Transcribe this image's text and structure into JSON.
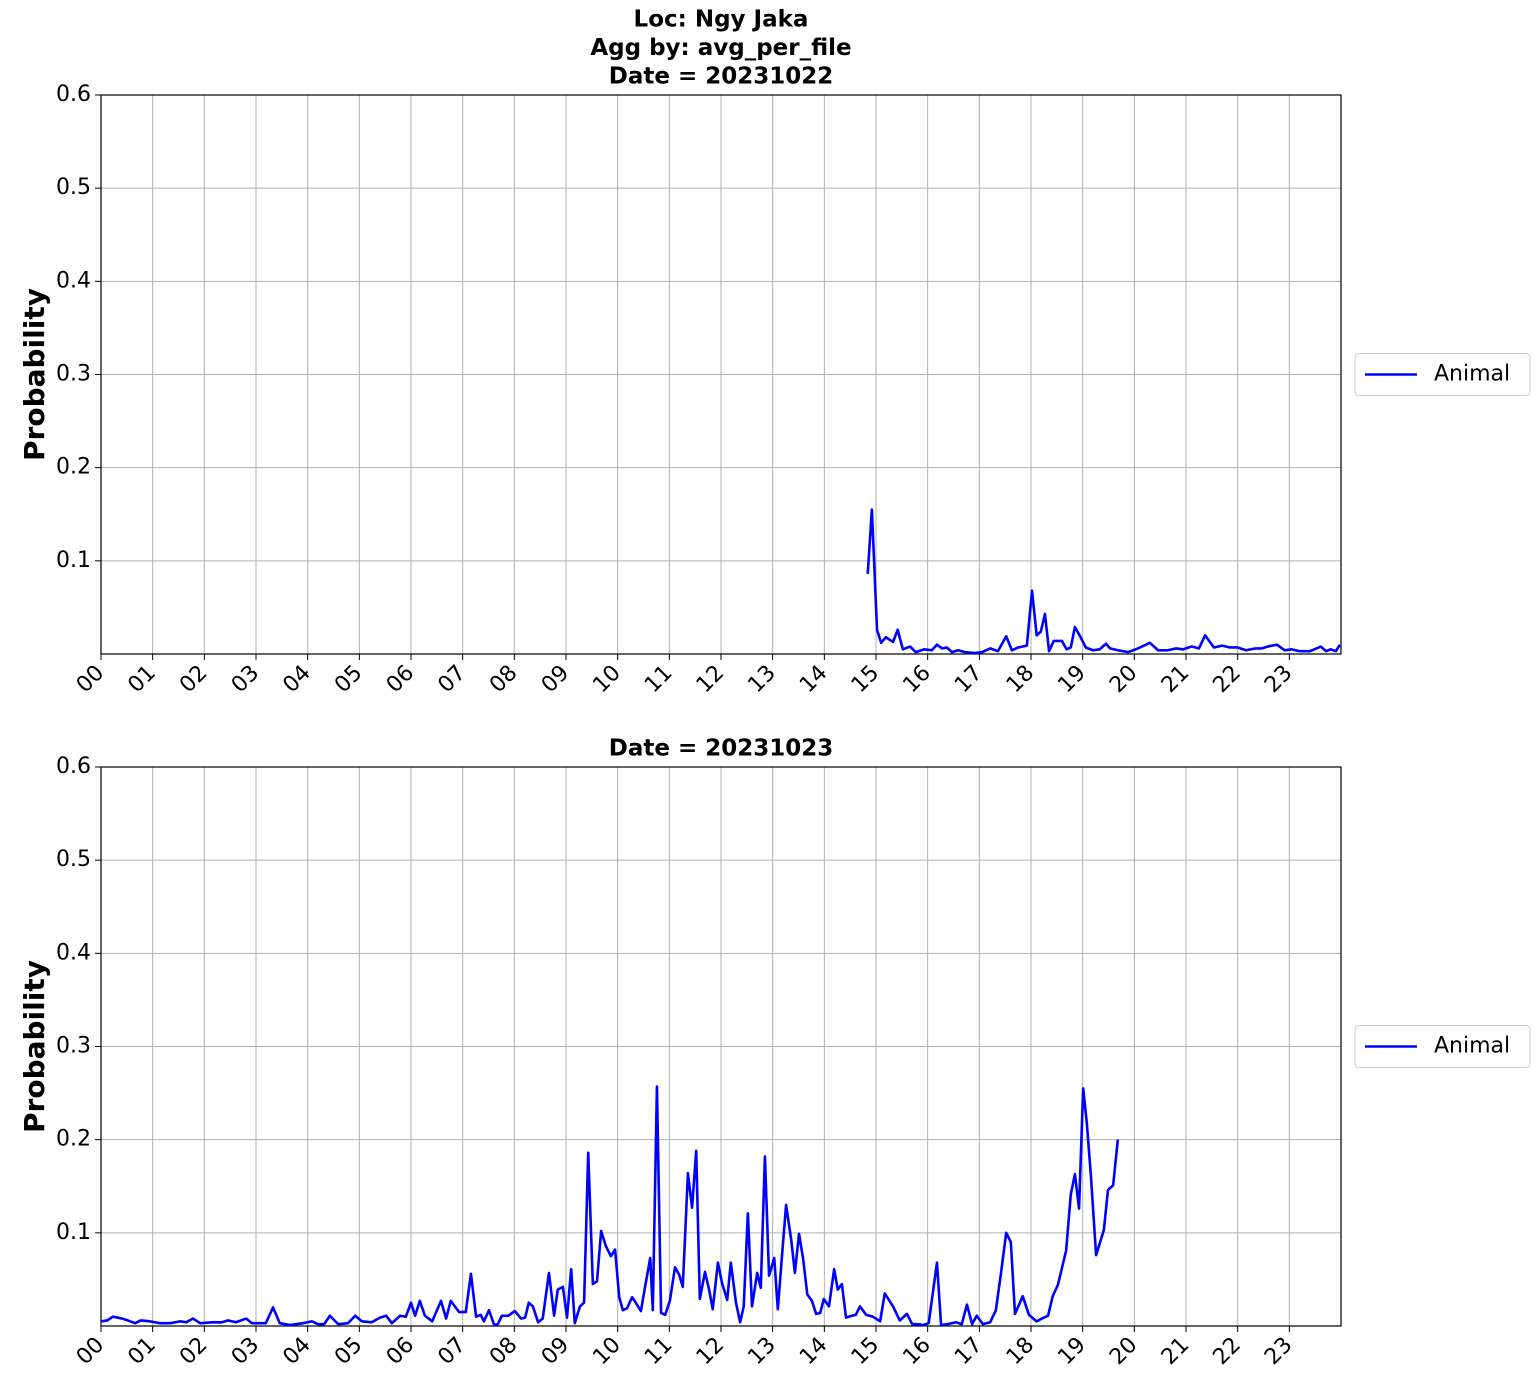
{
  "chart_data": [
    {
      "type": "line",
      "title": [
        "Loc: Ngy Jaka",
        "Agg by: avg_per_file",
        "Date = 20231022"
      ],
      "ylabel": "Probability",
      "xlim": [
        0,
        24
      ],
      "ylim": [
        0,
        0.6
      ],
      "yticks": [
        0.1,
        0.2,
        0.3,
        0.4,
        0.5,
        0.6
      ],
      "xticks": [
        {
          "value": 0,
          "label": "00"
        },
        {
          "value": 1,
          "label": "01"
        },
        {
          "value": 2,
          "label": "02"
        },
        {
          "value": 3,
          "label": "03"
        },
        {
          "value": 4,
          "label": "04"
        },
        {
          "value": 5,
          "label": "05"
        },
        {
          "value": 6,
          "label": "06"
        },
        {
          "value": 7,
          "label": "07"
        },
        {
          "value": 8,
          "label": "08"
        },
        {
          "value": 9,
          "label": "09"
        },
        {
          "value": 10,
          "label": "10"
        },
        {
          "value": 11,
          "label": "11"
        },
        {
          "value": 12,
          "label": "12"
        },
        {
          "value": 13,
          "label": "13"
        },
        {
          "value": 14,
          "label": "14"
        },
        {
          "value": 15,
          "label": "15"
        },
        {
          "value": 16,
          "label": "16"
        },
        {
          "value": 17,
          "label": "17"
        },
        {
          "value": 18,
          "label": "18"
        },
        {
          "value": 19,
          "label": "19"
        },
        {
          "value": 20,
          "label": "20"
        },
        {
          "value": 21,
          "label": "21"
        },
        {
          "value": 22,
          "label": "22"
        },
        {
          "value": 23,
          "label": "23"
        }
      ],
      "grid": true,
      "legend": "right",
      "x": [
        14.84,
        14.92,
        15.02,
        15.1,
        15.19,
        15.33,
        15.42,
        15.52,
        15.66,
        15.77,
        15.93,
        16.08,
        16.18,
        16.28,
        16.37,
        16.47,
        16.59,
        16.72,
        16.92,
        17.05,
        17.21,
        17.36,
        17.52,
        17.63,
        17.75,
        17.92,
        18.02,
        18.11,
        18.19,
        18.27,
        18.35,
        18.44,
        18.6,
        18.69,
        18.77,
        18.85,
        18.97,
        19.06,
        19.2,
        19.33,
        19.45,
        19.53,
        19.68,
        19.88,
        20.07,
        20.3,
        20.46,
        20.65,
        20.81,
        20.94,
        21.11,
        21.25,
        21.37,
        21.54,
        21.7,
        21.85,
        22.0,
        22.16,
        22.35,
        22.47,
        22.58,
        22.76,
        22.91,
        23.05,
        23.2,
        23.4,
        23.61,
        23.71,
        23.8,
        23.9,
        23.98
      ],
      "series": [
        {
          "name": "Animal",
          "color": "#0000ff",
          "values": [
            0.086,
            0.155,
            0.026,
            0.012,
            0.018,
            0.013,
            0.026,
            0.005,
            0.008,
            0.002,
            0.005,
            0.004,
            0.01,
            0.006,
            0.007,
            0.002,
            0.004,
            0.002,
            0.001,
            0.002,
            0.006,
            0.003,
            0.019,
            0.004,
            0.007,
            0.009,
            0.068,
            0.02,
            0.024,
            0.043,
            0.003,
            0.014,
            0.014,
            0.005,
            0.007,
            0.029,
            0.017,
            0.007,
            0.004,
            0.005,
            0.011,
            0.006,
            0.004,
            0.002,
            0.006,
            0.012,
            0.004,
            0.004,
            0.006,
            0.005,
            0.008,
            0.006,
            0.02,
            0.007,
            0.009,
            0.007,
            0.007,
            0.004,
            0.006,
            0.006,
            0.008,
            0.01,
            0.004,
            0.005,
            0.003,
            0.003,
            0.008,
            0.003,
            0.005,
            0.003,
            0.01
          ]
        }
      ]
    },
    {
      "type": "line",
      "title": [
        "Date = 20231023"
      ],
      "ylabel": "Probability",
      "xlim": [
        0,
        24
      ],
      "ylim": [
        0,
        0.6
      ],
      "yticks": [
        0.1,
        0.2,
        0.3,
        0.4,
        0.5,
        0.6
      ],
      "xticks": [
        {
          "value": 0,
          "label": "00"
        },
        {
          "value": 1,
          "label": "01"
        },
        {
          "value": 2,
          "label": "02"
        },
        {
          "value": 3,
          "label": "03"
        },
        {
          "value": 4,
          "label": "04"
        },
        {
          "value": 5,
          "label": "05"
        },
        {
          "value": 6,
          "label": "06"
        },
        {
          "value": 7,
          "label": "07"
        },
        {
          "value": 8,
          "label": "08"
        },
        {
          "value": 9,
          "label": "09"
        },
        {
          "value": 10,
          "label": "10"
        },
        {
          "value": 11,
          "label": "11"
        },
        {
          "value": 12,
          "label": "12"
        },
        {
          "value": 13,
          "label": "13"
        },
        {
          "value": 14,
          "label": "14"
        },
        {
          "value": 15,
          "label": "15"
        },
        {
          "value": 16,
          "label": "16"
        },
        {
          "value": 17,
          "label": "17"
        },
        {
          "value": 18,
          "label": "18"
        },
        {
          "value": 19,
          "label": "19"
        },
        {
          "value": 20,
          "label": "20"
        },
        {
          "value": 21,
          "label": "21"
        },
        {
          "value": 22,
          "label": "22"
        },
        {
          "value": 23,
          "label": "23"
        }
      ],
      "grid": true,
      "legend": "right",
      "x": [
        0.0,
        0.12,
        0.23,
        0.41,
        0.52,
        0.66,
        0.77,
        0.95,
        1.14,
        1.34,
        1.53,
        1.65,
        1.78,
        1.92,
        2.15,
        2.34,
        2.46,
        2.61,
        2.81,
        2.92,
        3.19,
        3.33,
        3.46,
        3.66,
        3.91,
        4.08,
        4.2,
        4.32,
        4.43,
        4.59,
        4.78,
        4.92,
        5.05,
        5.24,
        5.4,
        5.52,
        5.63,
        5.79,
        5.9,
        6.0,
        6.08,
        6.17,
        6.27,
        6.41,
        6.58,
        6.68,
        6.77,
        6.93,
        7.06,
        7.16,
        7.26,
        7.35,
        7.41,
        7.51,
        7.61,
        7.68,
        7.76,
        7.88,
        8.01,
        8.13,
        8.21,
        8.28,
        8.36,
        8.46,
        8.55,
        8.67,
        8.77,
        8.84,
        8.94,
        9.02,
        9.1,
        9.17,
        9.27,
        9.35,
        9.43,
        9.52,
        9.6,
        9.68,
        9.77,
        9.87,
        9.95,
        10.03,
        10.1,
        10.18,
        10.28,
        10.35,
        10.45,
        10.53,
        10.63,
        10.68,
        10.76,
        10.84,
        10.92,
        11.01,
        11.11,
        11.19,
        11.26,
        11.36,
        11.44,
        11.52,
        11.59,
        11.69,
        11.77,
        11.84,
        11.94,
        12.02,
        12.12,
        12.19,
        12.29,
        12.37,
        12.44,
        12.52,
        12.6,
        12.7,
        12.77,
        12.85,
        12.93,
        13.03,
        13.1,
        13.18,
        13.26,
        13.36,
        13.43,
        13.51,
        13.59,
        13.67,
        13.76,
        13.84,
        13.92,
        13.99,
        14.09,
        14.19,
        14.26,
        14.34,
        14.42,
        14.53,
        14.61,
        14.69,
        14.81,
        14.94,
        15.08,
        15.17,
        15.33,
        15.46,
        15.6,
        15.7,
        15.81,
        15.91,
        16.02,
        16.18,
        16.26,
        16.39,
        16.55,
        16.66,
        16.76,
        16.86,
        16.95,
        17.07,
        17.21,
        17.32,
        17.42,
        17.52,
        17.61,
        17.69,
        17.84,
        17.96,
        18.11,
        18.21,
        18.33,
        18.42,
        18.52,
        18.68,
        18.77,
        18.85,
        18.93,
        19.01,
        19.08,
        19.16,
        19.26,
        19.41,
        19.49,
        19.59,
        19.68
      ],
      "series": [
        {
          "name": "Animal",
          "color": "#0000ff",
          "values": [
            0.005,
            0.006,
            0.01,
            0.008,
            0.006,
            0.003,
            0.006,
            0.005,
            0.003,
            0.003,
            0.005,
            0.004,
            0.008,
            0.003,
            0.004,
            0.004,
            0.006,
            0.004,
            0.008,
            0.003,
            0.003,
            0.02,
            0.003,
            0.001,
            0.003,
            0.005,
            0.002,
            0.002,
            0.011,
            0.002,
            0.003,
            0.011,
            0.005,
            0.004,
            0.009,
            0.011,
            0.003,
            0.011,
            0.01,
            0.025,
            0.011,
            0.027,
            0.011,
            0.005,
            0.027,
            0.008,
            0.027,
            0.015,
            0.015,
            0.056,
            0.01,
            0.012,
            0.005,
            0.017,
            0.001,
            0.002,
            0.011,
            0.011,
            0.016,
            0.008,
            0.009,
            0.025,
            0.021,
            0.004,
            0.008,
            0.057,
            0.011,
            0.039,
            0.042,
            0.009,
            0.061,
            0.003,
            0.021,
            0.025,
            0.186,
            0.045,
            0.048,
            0.102,
            0.086,
            0.075,
            0.082,
            0.031,
            0.017,
            0.019,
            0.031,
            0.025,
            0.016,
            0.042,
            0.073,
            0.017,
            0.257,
            0.014,
            0.012,
            0.027,
            0.063,
            0.055,
            0.042,
            0.164,
            0.127,
            0.188,
            0.029,
            0.058,
            0.039,
            0.018,
            0.068,
            0.046,
            0.028,
            0.068,
            0.025,
            0.004,
            0.021,
            0.121,
            0.021,
            0.057,
            0.041,
            0.182,
            0.054,
            0.073,
            0.018,
            0.075,
            0.13,
            0.092,
            0.057,
            0.099,
            0.072,
            0.034,
            0.027,
            0.013,
            0.014,
            0.029,
            0.021,
            0.061,
            0.039,
            0.045,
            0.009,
            0.011,
            0.012,
            0.021,
            0.012,
            0.01,
            0.005,
            0.035,
            0.021,
            0.006,
            0.013,
            0.002,
            0.002,
            0.001,
            0.003,
            0.068,
            0.001,
            0.002,
            0.004,
            0.002,
            0.023,
            0.002,
            0.011,
            0.002,
            0.004,
            0.017,
            0.057,
            0.1,
            0.09,
            0.013,
            0.032,
            0.012,
            0.005,
            0.008,
            0.011,
            0.032,
            0.044,
            0.081,
            0.141,
            0.163,
            0.126,
            0.255,
            0.218,
            0.161,
            0.076,
            0.103,
            0.146,
            0.151,
            0.2
          ]
        }
      ]
    }
  ]
}
